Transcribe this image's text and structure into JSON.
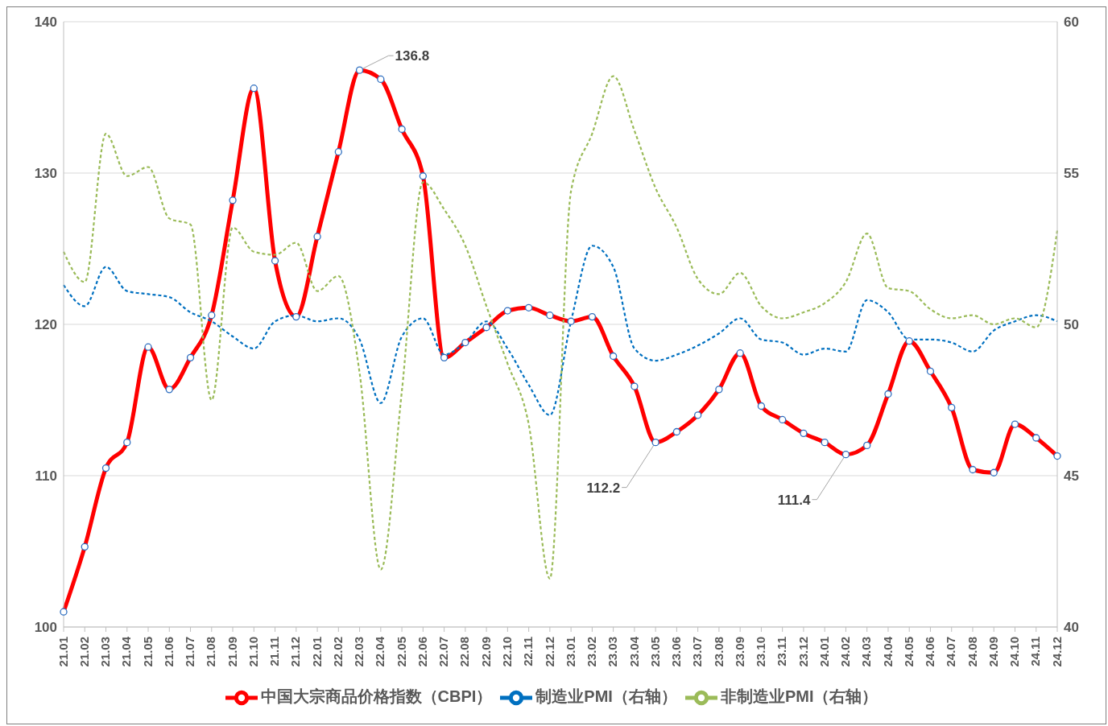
{
  "chart_data": {
    "type": "line",
    "categories": [
      "21.01",
      "21.02",
      "21.03",
      "21.04",
      "21.05",
      "21.06",
      "21.07",
      "21.08",
      "21.09",
      "21.10",
      "21.11",
      "21.12",
      "22.01",
      "22.02",
      "22.03",
      "22.04",
      "22.05",
      "22.06",
      "22.07",
      "22.08",
      "22.09",
      "22.10",
      "22.11",
      "22.12",
      "23.01",
      "23.02",
      "23.03",
      "23.04",
      "23.05",
      "23.06",
      "23.07",
      "23.08",
      "23.09",
      "23.10",
      "23.11",
      "23.12",
      "24.01",
      "24.02",
      "24.03",
      "24.04",
      "24.05",
      "24.06",
      "24.07",
      "24.08",
      "24.09",
      "24.10",
      "24.11",
      "24.12"
    ],
    "series": [
      {
        "name": "中国大宗商品价格指数（CBPI）",
        "color": "#ff0000",
        "marker": "circle",
        "line_style": "solid",
        "values": [
          101.0,
          105.3,
          110.5,
          112.2,
          118.5,
          115.7,
          117.8,
          120.6,
          128.2,
          135.6,
          124.2,
          120.5,
          125.8,
          131.4,
          136.8,
          136.2,
          132.9,
          129.8,
          117.8,
          118.8,
          119.8,
          120.9,
          121.1,
          120.6,
          120.2,
          120.5,
          117.9,
          115.9,
          112.2,
          112.9,
          114.0,
          115.7,
          118.1,
          114.6,
          113.7,
          112.8,
          112.2,
          111.4,
          112.0,
          115.4,
          118.9,
          116.9,
          114.5,
          110.4,
          110.2,
          113.4,
          112.5,
          111.3
        ]
      },
      {
        "name": "制造业PMI（右轴）",
        "color": "#0070c0",
        "axis": "y2",
        "marker": "none",
        "line_style": "dashed",
        "values": [
          51.3,
          50.6,
          51.9,
          51.1,
          51.0,
          50.9,
          50.4,
          50.1,
          49.6,
          49.2,
          50.1,
          50.3,
          50.1,
          50.2,
          49.5,
          47.4,
          49.6,
          50.2,
          49.0,
          49.4,
          50.1,
          49.2,
          48.0,
          47.0,
          50.1,
          52.6,
          51.9,
          49.2,
          48.8,
          49.0,
          49.3,
          49.7,
          50.2,
          49.5,
          49.4,
          49.0,
          49.2,
          49.1,
          50.8,
          50.4,
          49.5,
          49.5,
          49.4,
          49.1,
          49.8,
          50.1,
          50.3,
          50.1
        ]
      },
      {
        "name": "非制造业PMI（右轴）",
        "color": "#9bbb59",
        "axis": "y2",
        "marker": "none",
        "line_style": "dashed",
        "values": [
          52.4,
          51.4,
          56.3,
          54.9,
          55.2,
          53.5,
          53.3,
          47.5,
          53.2,
          52.4,
          52.3,
          52.7,
          51.1,
          51.6,
          48.4,
          41.9,
          47.8,
          54.7,
          53.8,
          52.6,
          50.6,
          48.7,
          46.7,
          41.6,
          54.4,
          56.3,
          58.2,
          56.4,
          54.5,
          53.2,
          51.5,
          51.0,
          51.7,
          50.6,
          50.2,
          50.4,
          50.7,
          51.4,
          53.0,
          51.2,
          51.1,
          50.5,
          50.2,
          50.3,
          50.0,
          50.2,
          49.9,
          53.1
        ]
      }
    ],
    "ylim": [
      100,
      140
    ],
    "yticks": [
      100,
      110,
      120,
      130,
      140
    ],
    "y2lim": [
      40,
      60
    ],
    "y2ticks": [
      40,
      45,
      50,
      55,
      60
    ],
    "grid": "y",
    "legend": "bottom",
    "annotations": [
      {
        "text": "136.8",
        "x": "22.03",
        "y": 136.8
      },
      {
        "text": "112.2",
        "x": "23.05",
        "y": 112.2
      },
      {
        "text": "111.4",
        "x": "24.02",
        "y": 111.4
      }
    ]
  }
}
